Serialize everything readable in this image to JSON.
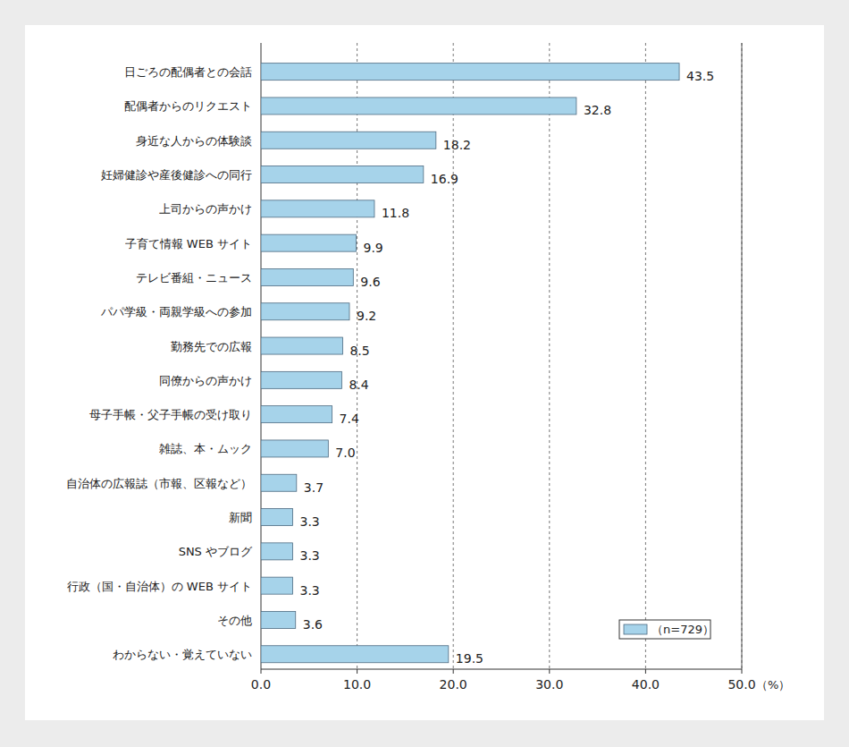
{
  "chart_data": {
    "type": "bar",
    "orientation": "horizontal",
    "categories": [
      "日ごろの配偶者との会話",
      "配偶者からのリクエスト",
      "身近な人からの体験談",
      "妊婦健診や産後健診への同行",
      "上司からの声かけ",
      "子育て情報 WEB サイト",
      "テレビ番組・ニュース",
      "パパ学級・両親学級への参加",
      "勤務先での広報",
      "同僚からの声かけ",
      "母子手帳・父子手帳の受け取り",
      "雑誌、本・ムック",
      "自治体の広報誌（市報、区報など）",
      "新聞",
      "SNS やブログ",
      "行政（国・自治体）の WEB サイト",
      "その他",
      "わからない・覚えていない"
    ],
    "series": [
      {
        "name": "（n=729）",
        "color": "#a6d3ea",
        "values": [
          43.5,
          32.8,
          18.2,
          16.9,
          11.8,
          9.9,
          9.6,
          9.2,
          8.5,
          8.4,
          7.4,
          7.0,
          3.7,
          3.3,
          3.3,
          3.3,
          3.6,
          19.5
        ],
        "value_labels": [
          "43.5",
          "32.8",
          "18.2",
          "16.9",
          "11.8",
          "9.9",
          "9.6",
          "9.2",
          "8.5",
          "8.4",
          "7.4",
          "7.0",
          "3.7",
          "3.3",
          "3.3",
          "3.3",
          "3.6",
          "19.5"
        ]
      }
    ],
    "xlim": [
      0,
      50
    ],
    "xticks": [
      {
        "value": 0,
        "label": "0.0"
      },
      {
        "value": 10,
        "label": "10.0"
      },
      {
        "value": 20,
        "label": "20.0"
      },
      {
        "value": 30,
        "label": "30.0"
      },
      {
        "value": 40,
        "label": "40.0"
      },
      {
        "value": 50,
        "label": "50.0"
      }
    ],
    "x_label": "（%）",
    "grid": true,
    "data_labels": true,
    "legend": "lower right"
  }
}
